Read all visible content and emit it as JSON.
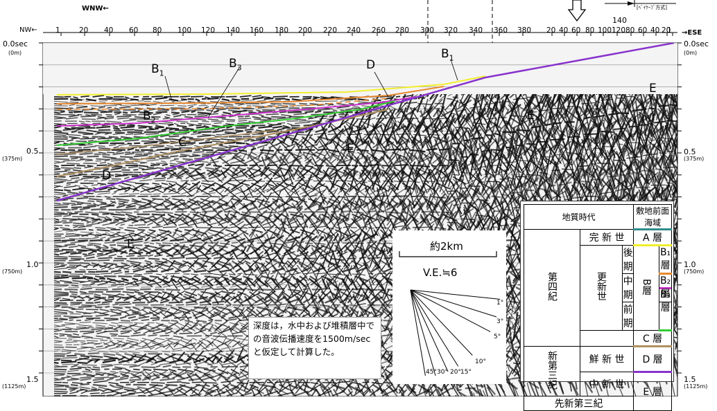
{
  "header": {
    "wnw": "WNW←",
    "nw": "NW←",
    "ese": "→ESE",
    "method_note": "[ﾍﾞｲｹｰﾌﾞ方式]",
    "dist_140": "140",
    "trace_numbers": [
      "1",
      "20",
      "40",
      "60",
      "80",
      "100",
      "120",
      "140",
      "160",
      "180",
      "200",
      "220",
      "240",
      "260",
      "280",
      "300",
      "320",
      "340",
      "360",
      "380",
      "20",
      "40",
      "60",
      "80",
      "100",
      "120",
      "80",
      "60",
      "40",
      "20",
      "1"
    ]
  },
  "depth_axis": {
    "left": [
      {
        "sec": "0.0sec",
        "m": "(0m)"
      },
      {
        "sec": "0.5",
        "m": "(375m)"
      },
      {
        "sec": "1.0",
        "m": "(750m)"
      },
      {
        "sec": "1.5",
        "m": "(1125m)"
      }
    ],
    "right": [
      {
        "sec": "0.0sec",
        "m": "(0m)"
      },
      {
        "sec": "0.5",
        "m": "(375m)"
      },
      {
        "sec": "1.0",
        "m": "(750m)"
      },
      {
        "sec": "1.5",
        "m": "(1125m)"
      }
    ]
  },
  "horizon_labels": {
    "b1_left": "B",
    "b1_left_sub": "1",
    "b3": "B",
    "b3_sub": "3",
    "d_upper": "D",
    "b1_right": "B",
    "b1_right_sub": "1",
    "b2": "B",
    "b2_sub": "2",
    "c": "C",
    "d_lower": "D",
    "e_mid": "E",
    "e_right": "E",
    "e_far_right": "E",
    "e_lower": "E"
  },
  "note": {
    "text": "深度は，水中および堆積層中での音波伝播速度を1500m/secと仮定して計算した。"
  },
  "scale": {
    "length": "約2km",
    "ve": "V.E.≒6",
    "angles": [
      "1°",
      "3°",
      "5°",
      "10°",
      "15°",
      "20°",
      "30°",
      "45°"
    ]
  },
  "legend": {
    "header_age": "地質時代",
    "header_unit": "敷地前面海域",
    "daiyonki": "第四紀",
    "kanshinsei": "完 新 世",
    "koshinsei": "更新世",
    "koki": "後期",
    "chuki": "中期",
    "zenki": "前期",
    "shindai_sanki": "新第三紀",
    "senshinsei": "鮮 新 世",
    "chushinsei": "中 新 世",
    "senshindaisanki": "先新第三紀",
    "a_so": "A 層",
    "b_so": "B層",
    "b1_so": "B₁層",
    "b2_so": "B₂層",
    "b3_so": "B₃層",
    "c_so": "C 層",
    "d_so": "D 層",
    "e_so": "E 層",
    "colors": {
      "a": "#2e8b8b",
      "b1": "#f2ee2e",
      "b2": "#e8882e",
      "b3": "#cc33cc",
      "c": "#33cc33",
      "d": "#b09060",
      "e": "#8833cc"
    }
  }
}
